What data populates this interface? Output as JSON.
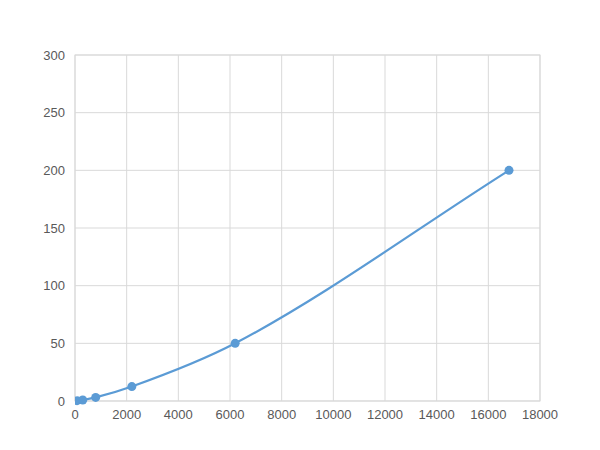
{
  "chart_data": {
    "type": "line",
    "x": [
      80,
      300,
      800,
      2200,
      6200,
      16800
    ],
    "values": [
      0.3,
      0.9,
      3.1,
      12.5,
      50,
      200
    ],
    "color": "#5b9bd5",
    "marker": "circle",
    "line_style": "smooth",
    "xlim": [
      0,
      18000
    ],
    "xticks": [
      0,
      2000,
      4000,
      6000,
      8000,
      10000,
      12000,
      14000,
      16000,
      18000
    ],
    "ylim": [
      0,
      300
    ],
    "yticks": [
      0,
      50,
      100,
      150,
      200,
      250,
      300
    ],
    "grid": true
  }
}
